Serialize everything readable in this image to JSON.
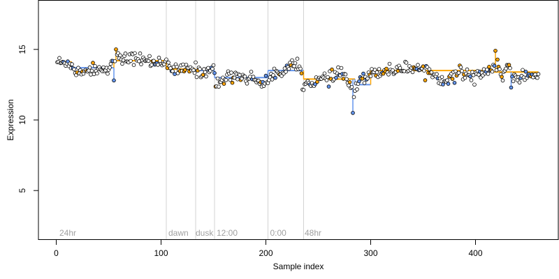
{
  "chart_data": {
    "type": "scatter",
    "xlabel": "Sample index",
    "ylabel": "Expression",
    "xlim": [
      -17,
      479
    ],
    "ylim": [
      1.5,
      18.5
    ],
    "x_ticks": [
      0,
      100,
      200,
      300,
      400
    ],
    "y_ticks": [
      5,
      10,
      15
    ],
    "grid": false,
    "legend": "none",
    "colors": {
      "point_edge": "#000000",
      "series_a": "#ffa500",
      "series_b": "#6495ed",
      "divider": "#d3d3d3",
      "annotation_text": "#a0a0a0"
    },
    "dividers": [
      105,
      133,
      151,
      202,
      236
    ],
    "annotations": [
      {
        "text": "24hr",
        "x": 3
      },
      {
        "text": "dawn",
        "x": 107
      },
      {
        "text": "dusk",
        "x": 133
      },
      {
        "text": "12:00",
        "x": 153
      },
      {
        "text": "0:00",
        "x": 204
      },
      {
        "text": "48hr",
        "x": 237
      }
    ],
    "segments": [
      {
        "x": [
          1,
          15
        ],
        "y": 14.1,
        "color": "orange"
      },
      {
        "x": [
          15,
          55
        ],
        "y": 13.7,
        "color": "blue"
      },
      {
        "x": [
          55,
          105
        ],
        "y": 14.2,
        "color": "orange"
      },
      {
        "x": [
          105,
          133
        ],
        "y": 13.6,
        "color": "orange"
      },
      {
        "x": [
          133,
          151
        ],
        "y": 13.5,
        "color": "blue"
      },
      {
        "x": [
          151,
          202
        ],
        "y": 13.0,
        "color": "blue"
      },
      {
        "x": [
          202,
          236
        ],
        "y": 13.5,
        "color": "blue"
      },
      {
        "x": [
          236,
          285
        ],
        "y": 12.9,
        "color": "orange"
      },
      {
        "x": [
          285,
          300
        ],
        "y": 12.5,
        "color": "blue"
      },
      {
        "x": [
          300,
          415
        ],
        "y": 13.5,
        "color": "orange"
      },
      {
        "x": [
          415,
          460
        ],
        "y": 13.4,
        "color": "orange"
      }
    ],
    "spikes": [
      {
        "x": 55,
        "y": 12.8,
        "color": "blue"
      },
      {
        "x": 57,
        "y": 15.0,
        "color": "orange"
      },
      {
        "x": 283,
        "y": 10.5,
        "color": "blue"
      },
      {
        "x": 419,
        "y": 14.9,
        "color": "orange"
      },
      {
        "x": 434,
        "y": 12.3,
        "color": "blue"
      }
    ],
    "baseline": [
      [
        0,
        14.2
      ],
      [
        5,
        14.0
      ],
      [
        10,
        14.1
      ],
      [
        15,
        14.0
      ],
      [
        17,
        13.4
      ],
      [
        25,
        13.5
      ],
      [
        35,
        13.6
      ],
      [
        45,
        13.6
      ],
      [
        52,
        13.8
      ],
      [
        55,
        14.0
      ],
      [
        57,
        14.4
      ],
      [
        65,
        14.3
      ],
      [
        75,
        14.4
      ],
      [
        85,
        14.2
      ],
      [
        95,
        14.1
      ],
      [
        104,
        14.2
      ],
      [
        107,
        13.6
      ],
      [
        115,
        13.5
      ],
      [
        125,
        13.6
      ],
      [
        133,
        13.6
      ],
      [
        137,
        13.3
      ],
      [
        143,
        13.5
      ],
      [
        150,
        13.7
      ],
      [
        152,
        12.3
      ],
      [
        155,
        12.7
      ],
      [
        160,
        12.9
      ],
      [
        170,
        13.2
      ],
      [
        180,
        13.0
      ],
      [
        190,
        12.9
      ],
      [
        196,
        12.7
      ],
      [
        200,
        12.5
      ],
      [
        205,
        13.1
      ],
      [
        215,
        13.5
      ],
      [
        225,
        13.9
      ],
      [
        232,
        13.7
      ],
      [
        237,
        12.4
      ],
      [
        242,
        12.7
      ],
      [
        250,
        12.8
      ],
      [
        258,
        12.9
      ],
      [
        265,
        13.0
      ],
      [
        272,
        13.4
      ],
      [
        278,
        12.8
      ],
      [
        282,
        12.2
      ],
      [
        283,
        10.9
      ],
      [
        286,
        12.6
      ],
      [
        292,
        13.1
      ],
      [
        298,
        13.0
      ],
      [
        303,
        13.4
      ],
      [
        315,
        13.5
      ],
      [
        325,
        13.6
      ],
      [
        335,
        13.7
      ],
      [
        345,
        13.7
      ],
      [
        355,
        13.5
      ],
      [
        362,
        13.1
      ],
      [
        370,
        12.9
      ],
      [
        378,
        13.0
      ],
      [
        385,
        13.4
      ],
      [
        395,
        13.2
      ],
      [
        405,
        13.3
      ],
      [
        415,
        13.4
      ],
      [
        420,
        13.9
      ],
      [
        426,
        13.2
      ],
      [
        432,
        13.8
      ],
      [
        436,
        12.7
      ],
      [
        440,
        12.9
      ],
      [
        445,
        13.3
      ],
      [
        452,
        13.1
      ],
      [
        460,
        13.1
      ]
    ],
    "n_points": 460
  }
}
